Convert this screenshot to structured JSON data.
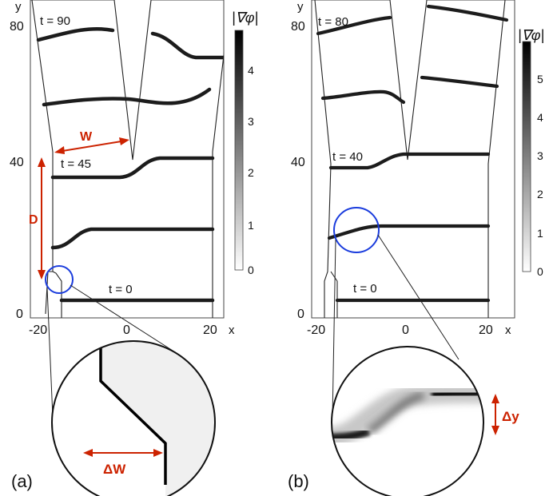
{
  "panel_a": {
    "label": "(a)",
    "x_axis_name": "x",
    "y_axis_name": "y",
    "x_ticks": [
      "-20",
      "0",
      "20"
    ],
    "y_ticks": [
      "0",
      "40",
      "80"
    ],
    "time_labels": [
      "t = 90",
      "t = 45",
      "t = 0"
    ],
    "width_label": "W",
    "depth_label": "D",
    "zoom_label": "ΔW",
    "colorbar_title": "|∇φ|",
    "colorbar_ticks": [
      "0",
      "1",
      "2",
      "3",
      "4"
    ]
  },
  "panel_b": {
    "label": "(b)",
    "x_axis_name": "x",
    "y_axis_name": "y",
    "x_ticks": [
      "-20",
      "0",
      "20"
    ],
    "y_ticks": [
      "0",
      "40",
      "80"
    ],
    "time_labels": [
      "t = 80",
      "t = 40",
      "t = 0"
    ],
    "zoom_label": "Δy",
    "colorbar_title": "|∇φ|",
    "colorbar_ticks": [
      "0",
      "1",
      "2",
      "3",
      "4",
      "5"
    ]
  },
  "colors": {
    "annotation": "#cc2200",
    "highlight_circle": "#1a3cdd",
    "front": "#1a1a1a",
    "frame": "#333333"
  }
}
